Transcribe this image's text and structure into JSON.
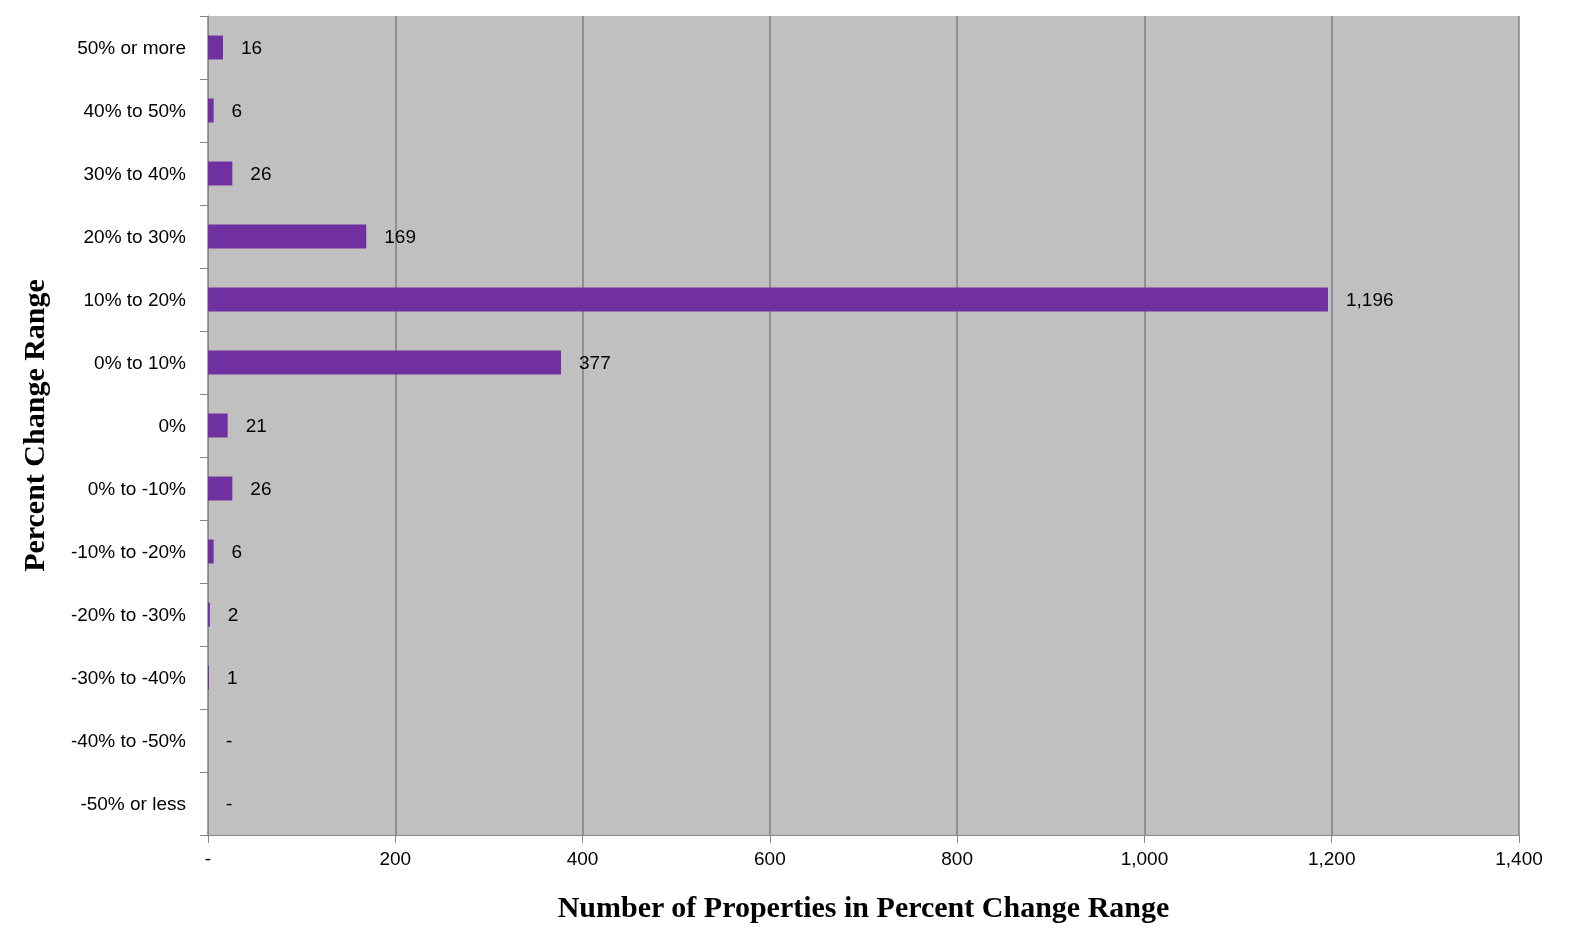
{
  "chart_data": {
    "type": "bar",
    "orientation": "horizontal",
    "xlabel": "Number of Properties in Percent Change Range",
    "ylabel": "Percent Change Range",
    "categories": [
      "50% or more",
      "40% to 50%",
      "30% to 40%",
      "20% to 30%",
      "10% to 20%",
      "0% to 10%",
      "0%",
      "0% to -10%",
      "-10% to -20%",
      "-20% to -30%",
      "-30% to -40%",
      "-40% to -50%",
      "-50% or less"
    ],
    "values": [
      16,
      6,
      26,
      169,
      1196,
      377,
      21,
      26,
      6,
      2,
      1,
      0,
      0
    ],
    "value_labels": [
      "16",
      "6",
      "26",
      "169",
      "1,196",
      "377",
      "21",
      "26",
      "6",
      "2",
      "1",
      "-",
      "-"
    ],
    "color": "#7030a0",
    "xlim": [
      0,
      1400
    ],
    "xticks": [
      {
        "value": 0,
        "label": "-"
      },
      200,
      400,
      600,
      800,
      {
        "value": 1000,
        "label": "1,000"
      },
      {
        "value": 1200,
        "label": "1,200"
      },
      {
        "value": 1400,
        "label": "1,400"
      }
    ],
    "grid": "x"
  }
}
